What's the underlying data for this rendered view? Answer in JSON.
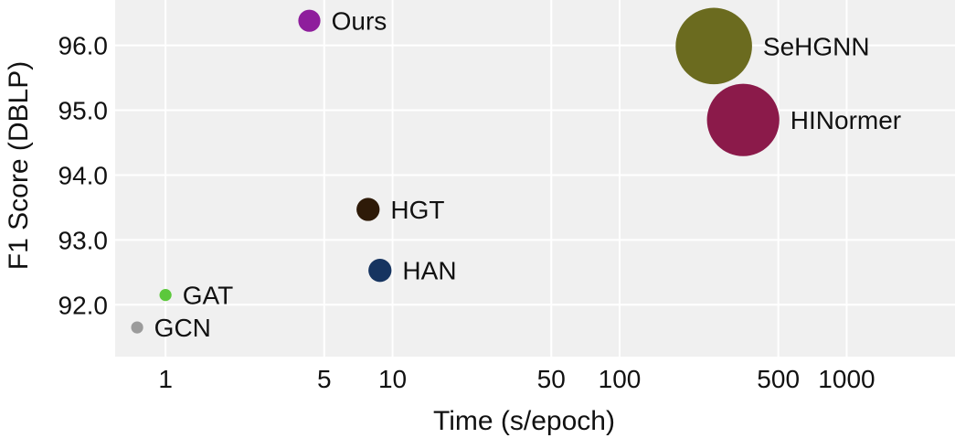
{
  "chart_data": {
    "type": "scatter",
    "xlabel": "Time (s/epoch)",
    "ylabel": "F1 Score (DBLP)",
    "x_scale": "log",
    "xlim": [
      0.6,
      3000
    ],
    "ylim": [
      91.2,
      96.7
    ],
    "x_ticks": [
      1,
      5,
      10,
      50,
      100,
      500,
      1000
    ],
    "x_tick_labels": [
      "1",
      "5",
      "10",
      "50",
      "100",
      "500",
      "1000"
    ],
    "y_ticks": [
      92,
      93,
      94,
      95,
      96
    ],
    "y_tick_labels": [
      "92.0",
      "93.0",
      "94.0",
      "95.0",
      "96.0"
    ],
    "grid": true,
    "background": "#f0f0f0",
    "points": [
      {
        "label": "Ours",
        "x": 4.3,
        "y": 96.38,
        "size": 1.1,
        "color": "#8e1e9c"
      },
      {
        "label": "SeHGNN",
        "x": 260,
        "y": 95.99,
        "size": 3.8,
        "color": "#6b6b1f"
      },
      {
        "label": "HINormer",
        "x": 350,
        "y": 94.85,
        "size": 3.6,
        "color": "#8b1a4a"
      },
      {
        "label": "HGT",
        "x": 7.8,
        "y": 93.47,
        "size": 1.15,
        "color": "#2e1a08"
      },
      {
        "label": "HAN",
        "x": 8.8,
        "y": 92.53,
        "size": 1.15,
        "color": "#163460"
      },
      {
        "label": "GAT",
        "x": 1.0,
        "y": 92.15,
        "size": 0.6,
        "color": "#5cc83c"
      },
      {
        "label": "GCN",
        "x": 0.75,
        "y": 91.65,
        "size": 0.6,
        "color": "#9b9b9b"
      }
    ]
  }
}
